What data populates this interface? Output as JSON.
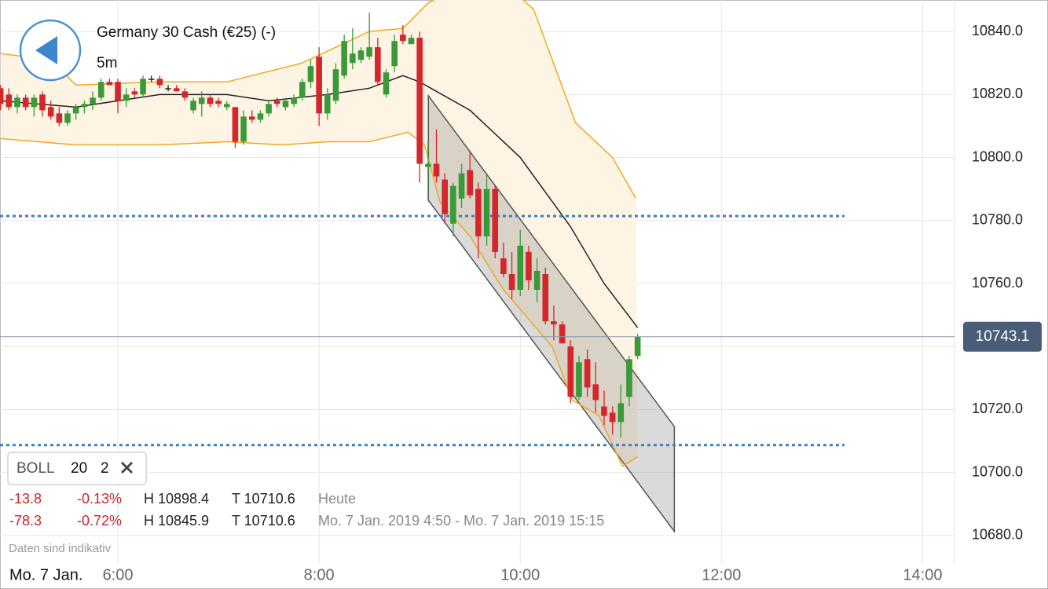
{
  "header": {
    "title": "Germany 30 Cash (€25) (-)",
    "interval": "5m"
  },
  "indicator": {
    "name": "BOLL",
    "period": "20",
    "deviation": "2"
  },
  "stats": [
    [
      "-13.8",
      "-0.13%",
      "H 10898.4",
      "T 10710.6",
      "Heute"
    ],
    [
      "-78.3",
      "-0.72%",
      "H 10845.9",
      "T 10710.6",
      "Mo. 7 Jan. 2019 4:50 - Mo. 7 Jan. 2019 15:15"
    ]
  ],
  "footer": {
    "note": "Daten sind indikativ",
    "date": "Mo. 7 Jan."
  },
  "chart_data": {
    "type": "candlestick",
    "up_color": "#3a9a3a",
    "down_color": "#d4262b",
    "doji_color": "#222222",
    "x": [
      290,
      295,
      300,
      305,
      310,
      315,
      320,
      325,
      330,
      335,
      340,
      345,
      350,
      355,
      360,
      365,
      370,
      375,
      380,
      385,
      390,
      395,
      400,
      405,
      410,
      415,
      420,
      425,
      430,
      435,
      440,
      445,
      450,
      455,
      460,
      465,
      470,
      475,
      480,
      485,
      490,
      495,
      500,
      505,
      510,
      515,
      520,
      525,
      530,
      535,
      540,
      545,
      550,
      555,
      560,
      565,
      570,
      575,
      580,
      585,
      590,
      595,
      600,
      605,
      610,
      615,
      620,
      625,
      630,
      635,
      640,
      645,
      650,
      655,
      660,
      665,
      670
    ],
    "open": [
      10822,
      10820,
      10816,
      10819,
      10816,
      10820,
      10816,
      10814,
      10811,
      10814,
      10816,
      10817,
      10819,
      10824,
      10824,
      10818,
      10821,
      10820,
      10825,
      10825,
      10822,
      10822,
      10821,
      10815,
      10817,
      10819,
      10818,
      10816,
      10816,
      10805,
      10813,
      10812,
      10814,
      10818,
      10816,
      10817,
      10819,
      10824,
      10832,
      10814,
      10818,
      10826,
      10830,
      10831,
      10832,
      10835,
      10820,
      10829,
      10839,
      10836,
      10838,
      10797,
      10798,
      10793,
      10779,
      10787,
      10796,
      10790,
      10775,
      10790,
      10768,
      10763,
      10758,
      10770,
      10758,
      10763,
      10748,
      10747,
      10740,
      10724,
      10736,
      10728,
      10721,
      10719,
      10716,
      10724,
      10737
    ],
    "high": [
      10823,
      10822,
      10820,
      10820,
      10820,
      10821,
      10818,
      10816,
      10815,
      10817,
      10818,
      10821,
      10825,
      10825,
      10825,
      10822,
      10822,
      10826,
      10826,
      10826,
      10823,
      10823,
      10822,
      10819,
      10821,
      10820,
      10819,
      10818,
      10816,
      10815,
      10815,
      10815,
      10818,
      10819,
      10819,
      10820,
      10825,
      10831,
      10835,
      10822,
      10830,
      10839,
      10841,
      10835,
      10846,
      10838,
      10828,
      10839,
      10842,
      10839,
      10840,
      10805,
      10809,
      10795,
      10792,
      10798,
      10802,
      10792,
      10795,
      10791,
      10773,
      10770,
      10777,
      10772,
      10768,
      10765,
      10753,
      10748,
      10742,
      10737,
      10739,
      10735,
      10726,
      10721,
      10728,
      10737,
      10744
    ],
    "low": [
      10815,
      10815,
      10814,
      10815,
      10813,
      10813,
      10812,
      10810,
      10810,
      10812,
      10814,
      10815,
      10818,
      10823,
      10814,
      10816,
      10819,
      10819,
      10824,
      10822,
      10821,
      10821,
      10818,
      10814,
      10813,
      10816,
      10816,
      10815,
      10803,
      10804,
      10811,
      10811,
      10813,
      10816,
      10815,
      10816,
      10818,
      10822,
      10810,
      10812,
      10817,
      10825,
      10828,
      10830,
      10831,
      10823,
      10819,
      10827,
      10836,
      10836,
      10792,
      10787,
      10792,
      10779,
      10775,
      10784,
      10787,
      10768,
      10772,
      10768,
      10762,
      10755,
      10756,
      10758,
      10754,
      10747,
      10742,
      10741,
      10722,
      10723,
      10724,
      10719,
      10715,
      10712,
      10711,
      10721,
      10736
    ],
    "close": [
      10817,
      10816,
      10819,
      10816,
      10819,
      10815,
      10813,
      10811,
      10814,
      10816,
      10817,
      10819,
      10824,
      10823,
      10818,
      10820,
      10820,
      10825,
      10825,
      10823,
      10822,
      10821,
      10819,
      10818,
      10819,
      10817,
      10817,
      10817,
      10805,
      10813,
      10812,
      10814,
      10817,
      10817,
      10818,
      10819,
      10824,
      10829,
      10814,
      10820,
      10828,
      10837,
      10833,
      10834,
      10835,
      10824,
      10827,
      10837,
      10837,
      10838,
      10798,
      10798,
      10794,
      10782,
      10791,
      10795,
      10788,
      10775,
      10790,
      10770,
      10763,
      10758,
      10772,
      10761,
      10764,
      10748,
      10747,
      10741,
      10724,
      10735,
      10727,
      10723,
      10718,
      10716,
      10722,
      10736,
      10743.1
    ],
    "bollinger": {
      "color": "#f0a820",
      "fill": "#fdf4e4",
      "middle": {
        "color": "#222222",
        "x": [
          290,
          335,
          385,
          425,
          450,
          485,
          510,
          530,
          540,
          570,
          600,
          630,
          650,
          670
        ],
        "values": [
          10818,
          10816,
          10820,
          10820,
          10818,
          10820,
          10822,
          10826,
          10824,
          10815,
          10800,
          10778,
          10760,
          10746
        ]
      },
      "upper": {
        "x": [
          290,
          320,
          335,
          385,
          425,
          470,
          490,
          510,
          530,
          545,
          555,
          585,
          608,
          633,
          655,
          669
        ],
        "values": [
          10833,
          10831,
          10823,
          10824,
          10824,
          10830,
          10835,
          10840,
          10841,
          10849,
          10852,
          10858,
          10847,
          10811,
          10800,
          10787
        ]
      },
      "lower": {
        "x": [
          290,
          335,
          385,
          425,
          458,
          485,
          510,
          533,
          543,
          552,
          570,
          590,
          619,
          631,
          647,
          661,
          670
        ],
        "values": [
          10806,
          10804,
          10804,
          10805,
          10804,
          10805,
          10805,
          10808,
          10804,
          10786,
          10775,
          10758,
          10740,
          10723,
          10718,
          10702,
          10705
        ]
      }
    },
    "channel": {
      "x": [
        545.2,
        691.9
      ],
      "upper": [
        10819.6,
        10714.6
      ],
      "lower": [
        10786.4,
        10681.3
      ],
      "color": "#555555"
    },
    "levels": [
      10781.4,
      10708.7
    ],
    "level_color": "#3d7fc0",
    "last_price": 10743.1,
    "last_color": "#4a5d78",
    "xlim": [
      289.7,
      859
    ],
    "ylim": [
      10671,
      10850
    ],
    "xticks": [
      {
        "value": 360,
        "label": "6:00"
      },
      {
        "value": 480,
        "label": "8:00"
      },
      {
        "value": 600,
        "label": "10:00"
      },
      {
        "value": 720,
        "label": "12:00"
      },
      {
        "value": 840,
        "label": "14:00"
      }
    ],
    "yticks": [
      {
        "value": 10680,
        "label": "10680.0"
      },
      {
        "value": 10700,
        "label": "10700.0"
      },
      {
        "value": 10720,
        "label": "10720.0"
      },
      {
        "value": 10740,
        "label": "10740.0"
      },
      {
        "value": 10760,
        "label": "10760.0"
      },
      {
        "value": 10780,
        "label": "10780.0"
      },
      {
        "value": 10800,
        "label": "10800.0"
      },
      {
        "value": 10820,
        "label": "10820.0"
      },
      {
        "value": 10840,
        "label": "10840.0"
      }
    ],
    "grid": true
  }
}
